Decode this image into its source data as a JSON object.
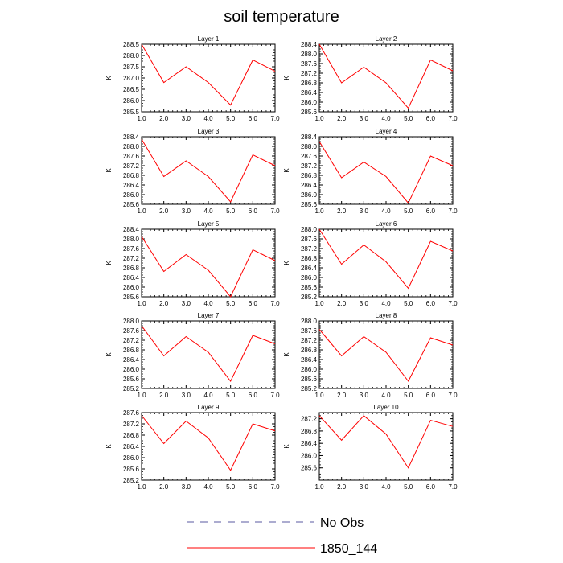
{
  "title": "soil temperature",
  "legend": {
    "items": [
      {
        "label": "No Obs",
        "color": "#5a5aa0",
        "dash": true
      },
      {
        "label": "1850_144",
        "color": "#ff0000",
        "dash": false
      }
    ]
  },
  "chart_data": [
    {
      "type": "line",
      "title": "Layer 1",
      "ylabel": "K",
      "xlim": [
        1,
        7
      ],
      "ylim": [
        285.5,
        288.5
      ],
      "xticks": [
        "1.0",
        "2.0",
        "3.0",
        "4.0",
        "5.0",
        "6.0",
        "7.0"
      ],
      "yticks": [
        "285.5",
        "286.0",
        "286.5",
        "287.0",
        "287.5",
        "288.0",
        "288.5"
      ],
      "series": [
        {
          "name": "1850_144",
          "color": "#ff0000",
          "x": [
            1,
            2,
            3,
            4,
            5,
            6,
            7
          ],
          "y": [
            288.5,
            286.8,
            287.5,
            286.8,
            285.8,
            287.8,
            287.3
          ]
        }
      ]
    },
    {
      "type": "line",
      "title": "Layer 2",
      "ylabel": "K",
      "xlim": [
        1,
        7
      ],
      "ylim": [
        285.6,
        288.4
      ],
      "xticks": [
        "1.0",
        "2.0",
        "3.0",
        "4.0",
        "5.0",
        "6.0",
        "7.0"
      ],
      "yticks": [
        "285.6",
        "286.0",
        "286.4",
        "286.8",
        "287.2",
        "287.6",
        "288.0",
        "288.4"
      ],
      "series": [
        {
          "name": "1850_144",
          "color": "#ff0000",
          "x": [
            1,
            2,
            3,
            4,
            5,
            6,
            7
          ],
          "y": [
            288.4,
            286.8,
            287.45,
            286.8,
            285.75,
            287.75,
            287.3
          ]
        }
      ]
    },
    {
      "type": "line",
      "title": "Layer 3",
      "ylabel": "K",
      "xlim": [
        1,
        7
      ],
      "ylim": [
        285.6,
        288.4
      ],
      "xticks": [
        "1.0",
        "2.0",
        "3.0",
        "4.0",
        "5.0",
        "6.0",
        "7.0"
      ],
      "yticks": [
        "285.6",
        "286.0",
        "286.4",
        "286.8",
        "287.2",
        "287.6",
        "288.0",
        "288.4"
      ],
      "series": [
        {
          "name": "1850_144",
          "color": "#ff0000",
          "x": [
            1,
            2,
            3,
            4,
            5,
            6,
            7
          ],
          "y": [
            288.3,
            286.75,
            287.4,
            286.75,
            285.7,
            287.65,
            287.2
          ]
        }
      ]
    },
    {
      "type": "line",
      "title": "Layer 4",
      "ylabel": "K",
      "xlim": [
        1,
        7
      ],
      "ylim": [
        285.6,
        288.4
      ],
      "xticks": [
        "1.0",
        "2.0",
        "3.0",
        "4.0",
        "5.0",
        "6.0",
        "7.0"
      ],
      "yticks": [
        "285.6",
        "286.0",
        "286.4",
        "286.8",
        "287.2",
        "287.6",
        "288.0",
        "288.4"
      ],
      "series": [
        {
          "name": "1850_144",
          "color": "#ff0000",
          "x": [
            1,
            2,
            3,
            4,
            5,
            6,
            7
          ],
          "y": [
            288.2,
            286.7,
            287.35,
            286.75,
            285.65,
            287.6,
            287.2
          ]
        }
      ]
    },
    {
      "type": "line",
      "title": "Layer 5",
      "ylabel": "K",
      "xlim": [
        1,
        7
      ],
      "ylim": [
        285.6,
        288.4
      ],
      "xticks": [
        "1.0",
        "2.0",
        "3.0",
        "4.0",
        "5.0",
        "6.0",
        "7.0"
      ],
      "yticks": [
        "285.6",
        "286.0",
        "286.4",
        "286.8",
        "287.2",
        "287.6",
        "288.0",
        "288.4"
      ],
      "series": [
        {
          "name": "1850_144",
          "color": "#ff0000",
          "x": [
            1,
            2,
            3,
            4,
            5,
            6,
            7
          ],
          "y": [
            288.1,
            286.65,
            287.35,
            286.7,
            285.6,
            287.55,
            287.1
          ]
        }
      ]
    },
    {
      "type": "line",
      "title": "Layer 6",
      "ylabel": "K",
      "xlim": [
        1,
        7
      ],
      "ylim": [
        285.2,
        288.0
      ],
      "xticks": [
        "1.0",
        "2.0",
        "3.0",
        "4.0",
        "5.0",
        "6.0",
        "7.0"
      ],
      "yticks": [
        "285.2",
        "285.6",
        "286.0",
        "286.4",
        "286.8",
        "287.2",
        "287.6",
        "288.0"
      ],
      "series": [
        {
          "name": "1850_144",
          "color": "#ff0000",
          "x": [
            1,
            2,
            3,
            4,
            5,
            6,
            7
          ],
          "y": [
            288.0,
            286.55,
            287.35,
            286.65,
            285.55,
            287.5,
            287.1
          ]
        }
      ]
    },
    {
      "type": "line",
      "title": "Layer 7",
      "ylabel": "K",
      "xlim": [
        1,
        7
      ],
      "ylim": [
        285.2,
        288.0
      ],
      "xticks": [
        "1.0",
        "2.0",
        "3.0",
        "4.0",
        "5.0",
        "6.0",
        "7.0"
      ],
      "yticks": [
        "285.2",
        "285.6",
        "286.0",
        "286.4",
        "286.8",
        "287.2",
        "287.6",
        "288.0"
      ],
      "series": [
        {
          "name": "1850_144",
          "color": "#ff0000",
          "x": [
            1,
            2,
            3,
            4,
            5,
            6,
            7
          ],
          "y": [
            287.8,
            286.55,
            287.35,
            286.7,
            285.5,
            287.4,
            287.05
          ]
        }
      ]
    },
    {
      "type": "line",
      "title": "Layer 8",
      "ylabel": "K",
      "xlim": [
        1,
        7
      ],
      "ylim": [
        285.2,
        288.0
      ],
      "xticks": [
        "1.0",
        "2.0",
        "3.0",
        "4.0",
        "5.0",
        "6.0",
        "7.0"
      ],
      "yticks": [
        "285.2",
        "285.6",
        "286.0",
        "286.4",
        "286.8",
        "287.2",
        "287.6",
        "288.0"
      ],
      "series": [
        {
          "name": "1850_144",
          "color": "#ff0000",
          "x": [
            1,
            2,
            3,
            4,
            5,
            6,
            7
          ],
          "y": [
            287.65,
            286.55,
            287.35,
            286.7,
            285.5,
            287.3,
            287.0
          ]
        }
      ]
    },
    {
      "type": "line",
      "title": "Layer 9",
      "ylabel": "K",
      "xlim": [
        1,
        7
      ],
      "ylim": [
        285.2,
        287.6
      ],
      "xticks": [
        "1.0",
        "2.0",
        "3.0",
        "4.0",
        "5.0",
        "6.0",
        "7.0"
      ],
      "yticks": [
        "285.2",
        "285.6",
        "286.0",
        "286.4",
        "286.8",
        "287.2",
        "287.6"
      ],
      "series": [
        {
          "name": "1850_144",
          "color": "#ff0000",
          "x": [
            1,
            2,
            3,
            4,
            5,
            6,
            7
          ],
          "y": [
            287.5,
            286.5,
            287.3,
            286.7,
            285.55,
            287.2,
            286.95
          ]
        }
      ]
    },
    {
      "type": "line",
      "title": "Layer 10",
      "ylabel": "K",
      "xlim": [
        1,
        7
      ],
      "ylim": [
        285.2,
        287.4
      ],
      "xticks": [
        "1.0",
        "2.0",
        "3.0",
        "4.0",
        "5.0",
        "6.0",
        "7.0"
      ],
      "yticks": [
        "285.6",
        "286.0",
        "286.4",
        "286.8",
        "287.2"
      ],
      "series": [
        {
          "name": "1850_144",
          "color": "#ff0000",
          "x": [
            1,
            2,
            3,
            4,
            5,
            6,
            7
          ],
          "y": [
            287.3,
            286.5,
            287.3,
            286.7,
            285.6,
            287.15,
            286.95
          ]
        }
      ]
    }
  ]
}
